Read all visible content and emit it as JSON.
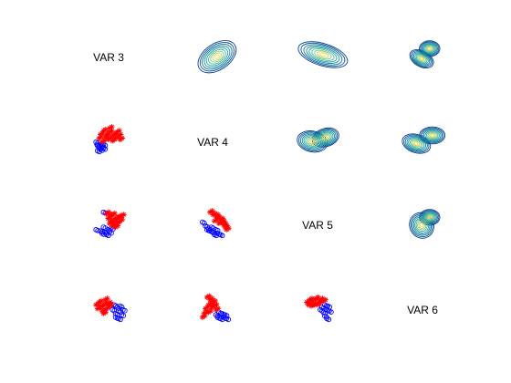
{
  "chart_data": {
    "type": "scatter",
    "layout": "scatter-matrix",
    "variables": [
      "VAR 3",
      "VAR 4",
      "VAR 5",
      "VAR 6"
    ],
    "upper_triangle": "contour",
    "lower_triangle": "scatter",
    "colors": {
      "class_a": "#ff0000",
      "class_b": "#0000ff",
      "contour_low": "#0b3f8f",
      "contour_mid": "#1aa6a6",
      "contour_high": "#f2e15a"
    },
    "markers": {
      "class_a": "asterisk",
      "class_b": "circle"
    },
    "scatter_cells": [
      {
        "row": 1,
        "col": 0,
        "class_a": [
          [
            0.15,
            0.55
          ],
          [
            0.2,
            0.7
          ],
          [
            0.3,
            0.85
          ],
          [
            0.4,
            0.7
          ],
          [
            0.5,
            0.8
          ],
          [
            0.55,
            0.6
          ],
          [
            0.65,
            0.7
          ],
          [
            0.7,
            0.55
          ],
          [
            0.8,
            0.65
          ],
          [
            0.85,
            0.5
          ],
          [
            0.6,
            0.45
          ],
          [
            0.45,
            0.5
          ],
          [
            0.35,
            0.6
          ],
          [
            0.25,
            0.4
          ],
          [
            0.75,
            0.8
          ],
          [
            0.5,
            0.95
          ]
        ],
        "class_b": [
          [
            0.05,
            0.4
          ],
          [
            0.1,
            0.25
          ],
          [
            0.15,
            0.15
          ],
          [
            0.2,
            0.3
          ],
          [
            0.25,
            0.2
          ],
          [
            0.3,
            0.3
          ],
          [
            0.1,
            0.05
          ],
          [
            0.2,
            0.1
          ],
          [
            0.08,
            0.3
          ],
          [
            0.3,
            0.15
          ]
        ]
      },
      {
        "row": 2,
        "col": 0,
        "class_a": [
          [
            0.4,
            0.9
          ],
          [
            0.5,
            0.8
          ],
          [
            0.6,
            0.85
          ],
          [
            0.7,
            0.7
          ],
          [
            0.8,
            0.75
          ],
          [
            0.55,
            0.6
          ],
          [
            0.65,
            0.55
          ],
          [
            0.75,
            0.5
          ],
          [
            0.6,
            0.4
          ],
          [
            0.5,
            0.5
          ],
          [
            0.85,
            0.6
          ],
          [
            0.7,
            0.35
          ],
          [
            0.45,
            0.7
          ],
          [
            0.9,
            0.8
          ]
        ],
        "class_b": [
          [
            0.2,
            0.2
          ],
          [
            0.3,
            0.35
          ],
          [
            0.35,
            0.15
          ],
          [
            0.45,
            0.25
          ],
          [
            0.4,
            0.05
          ],
          [
            0.5,
            0.15
          ],
          [
            0.05,
            0.25
          ],
          [
            0.3,
            0.95
          ],
          [
            0.25,
            0.1
          ],
          [
            0.55,
            0.3
          ]
        ]
      },
      {
        "row": 2,
        "col": 1,
        "class_a": [
          [
            0.35,
            0.95
          ],
          [
            0.45,
            0.85
          ],
          [
            0.55,
            0.8
          ],
          [
            0.6,
            0.7
          ],
          [
            0.7,
            0.65
          ],
          [
            0.75,
            0.55
          ],
          [
            0.8,
            0.45
          ],
          [
            0.85,
            0.35
          ],
          [
            0.65,
            0.5
          ],
          [
            0.5,
            0.6
          ],
          [
            0.9,
            0.25
          ]
        ],
        "class_b": [
          [
            0.1,
            0.55
          ],
          [
            0.2,
            0.4
          ],
          [
            0.3,
            0.3
          ],
          [
            0.35,
            0.2
          ],
          [
            0.45,
            0.15
          ],
          [
            0.5,
            0.05
          ],
          [
            0.6,
            0.1
          ],
          [
            0.4,
            0.35
          ],
          [
            0.25,
            0.25
          ],
          [
            0.55,
            0.25
          ],
          [
            0.7,
            0.05
          ]
        ]
      },
      {
        "row": 3,
        "col": 0,
        "class_a": [
          [
            0.05,
            0.6
          ],
          [
            0.15,
            0.7
          ],
          [
            0.2,
            0.5
          ],
          [
            0.3,
            0.6
          ],
          [
            0.35,
            0.8
          ],
          [
            0.4,
            0.45
          ],
          [
            0.45,
            0.65
          ],
          [
            0.25,
            0.35
          ],
          [
            0.1,
            0.45
          ],
          [
            0.5,
            0.55
          ],
          [
            0.3,
            0.25
          ]
        ],
        "class_b": [
          [
            0.6,
            0.4
          ],
          [
            0.65,
            0.6
          ],
          [
            0.7,
            0.25
          ],
          [
            0.75,
            0.5
          ],
          [
            0.8,
            0.35
          ],
          [
            0.85,
            0.55
          ],
          [
            0.9,
            0.2
          ],
          [
            0.7,
            0.1
          ],
          [
            0.8,
            0.05
          ],
          [
            0.95,
            0.4
          ]
        ]
      },
      {
        "row": 3,
        "col": 1,
        "class_a": [
          [
            0.25,
            0.9
          ],
          [
            0.35,
            0.8
          ],
          [
            0.3,
            0.6
          ],
          [
            0.45,
            0.7
          ],
          [
            0.2,
            0.45
          ],
          [
            0.4,
            0.5
          ],
          [
            0.5,
            0.55
          ],
          [
            0.15,
            0.25
          ],
          [
            0.3,
            0.3
          ],
          [
            0.55,
            0.4
          ],
          [
            0.1,
            0.1
          ]
        ],
        "class_b": [
          [
            0.55,
            0.2
          ],
          [
            0.65,
            0.3
          ],
          [
            0.6,
            0.1
          ],
          [
            0.75,
            0.25
          ],
          [
            0.8,
            0.1
          ],
          [
            0.7,
            0.05
          ],
          [
            0.85,
            0.2
          ],
          [
            0.9,
            0.05
          ]
        ]
      },
      {
        "row": 3,
        "col": 2,
        "class_a": [
          [
            0.05,
            0.7
          ],
          [
            0.15,
            0.8
          ],
          [
            0.25,
            0.75
          ],
          [
            0.35,
            0.85
          ],
          [
            0.45,
            0.7
          ],
          [
            0.3,
            0.6
          ],
          [
            0.2,
            0.55
          ],
          [
            0.4,
            0.6
          ],
          [
            0.5,
            0.8
          ],
          [
            0.1,
            0.6
          ],
          [
            0.6,
            0.75
          ]
        ],
        "class_b": [
          [
            0.55,
            0.5
          ],
          [
            0.65,
            0.6
          ],
          [
            0.7,
            0.4
          ],
          [
            0.75,
            0.55
          ],
          [
            0.6,
            0.3
          ],
          [
            0.8,
            0.35
          ],
          [
            0.65,
            0.15
          ],
          [
            0.72,
            0.05
          ],
          [
            0.5,
            0.4
          ]
        ]
      }
    ],
    "contour_cells": [
      {
        "row": 0,
        "col": 1,
        "peaks": [
          [
            0.55,
            0.45,
            0.25,
            0.2,
            -0.6
          ]
        ]
      },
      {
        "row": 0,
        "col": 2,
        "peaks": [
          [
            0.55,
            0.5,
            0.3,
            0.17,
            0.3
          ]
        ]
      },
      {
        "row": 0,
        "col": 3,
        "peaks": [
          [
            0.45,
            0.4,
            0.15,
            0.12,
            0.5
          ],
          [
            0.6,
            0.65,
            0.12,
            0.12,
            0.0
          ]
        ]
      },
      {
        "row": 1,
        "col": 2,
        "peaks": [
          [
            0.35,
            0.45,
            0.18,
            0.16,
            0.2
          ],
          [
            0.6,
            0.55,
            0.16,
            0.14,
            -0.3
          ]
        ]
      },
      {
        "row": 1,
        "col": 3,
        "peaks": [
          [
            0.35,
            0.4,
            0.17,
            0.14,
            0.3
          ],
          [
            0.65,
            0.6,
            0.15,
            0.13,
            0.0
          ]
        ]
      },
      {
        "row": 2,
        "col": 3,
        "peaks": [
          [
            0.45,
            0.45,
            0.14,
            0.2,
            -0.5
          ],
          [
            0.6,
            0.65,
            0.12,
            0.12,
            0.0
          ]
        ]
      }
    ],
    "contour_levels": 9,
    "grid": false,
    "legend": "none"
  }
}
